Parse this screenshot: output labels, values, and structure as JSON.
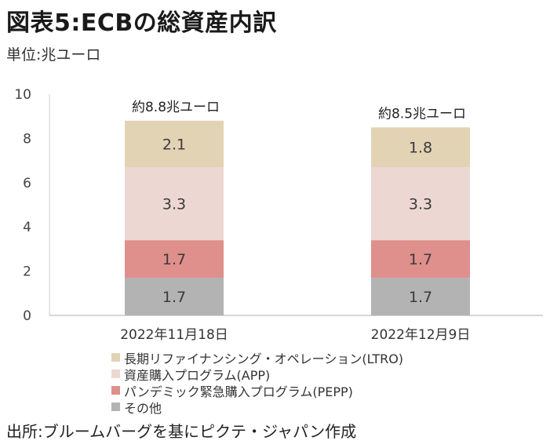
{
  "title": "図表5:ECBの総資産内訳",
  "unit_label": "単位:兆ユーロ",
  "source": "出所:ブルームバーグを基にピクテ・ジャパン作成",
  "chart_data": {
    "type": "bar",
    "stacked": true,
    "categories": [
      "2022年11月18日",
      "2022年12月9日"
    ],
    "series": [
      {
        "name": "その他",
        "values": [
          1.7,
          1.7
        ],
        "color": "#b3b3b3"
      },
      {
        "name": "パンデミック緊急購入プログラム(PEPP)",
        "values": [
          1.7,
          1.7
        ],
        "color": "#df8f8c"
      },
      {
        "name": "資産購入プログラム(APP)",
        "values": [
          3.3,
          3.3
        ],
        "color": "#ecd7d2"
      },
      {
        "name": "長期リファイナンシング・オペレーション(LTRO)",
        "values": [
          2.1,
          1.8
        ],
        "color": "#e3d3b5"
      }
    ],
    "total_labels": [
      "約8.8兆ユーロ",
      "約8.5兆ユーロ"
    ],
    "ylim": [
      0,
      10
    ],
    "yticks": [
      "0",
      "2",
      "4",
      "6",
      "8",
      "10"
    ],
    "xlabel": "",
    "ylabel": "",
    "grid": false,
    "legend_position": "bottom"
  }
}
